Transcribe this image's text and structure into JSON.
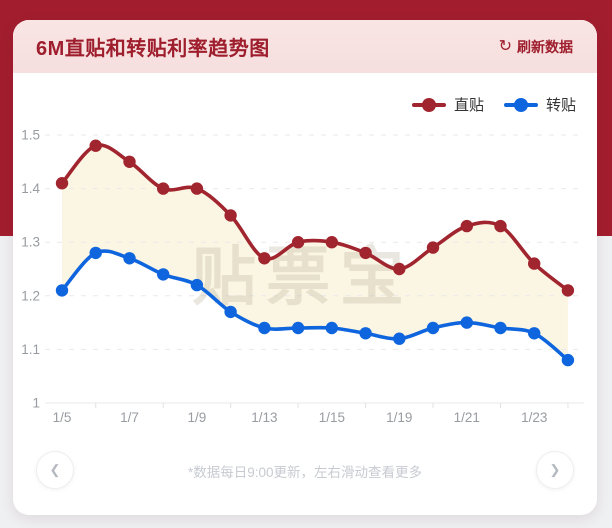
{
  "page": {
    "band_color": "#A21E2F",
    "bg_color": "#EFF0F2",
    "card_color": "#FFFFFF"
  },
  "header": {
    "title": "6M直贴和转贴利率趋势图",
    "refresh_icon": "↻",
    "refresh_label": "刷新数据",
    "text_color": "#9E1E2D",
    "bg_color": "#F8E3E2"
  },
  "legend": {
    "items": [
      {
        "label": "直贴",
        "color": "#A1252F"
      },
      {
        "label": "转贴",
        "color": "#0F65DE"
      }
    ]
  },
  "chart_data": {
    "type": "line",
    "title": "6M直贴和转贴利率趋势图",
    "x_tick_labels": [
      "1/5",
      "1/7",
      "1/9",
      "1/13",
      "1/15",
      "1/19",
      "1/21",
      "1/23"
    ],
    "points_per_label": 2,
    "n_points": 16,
    "series": [
      {
        "name": "直贴",
        "color": "#A1252F",
        "values": [
          1.41,
          1.48,
          1.45,
          1.4,
          1.4,
          1.35,
          1.27,
          1.3,
          1.3,
          1.28,
          1.25,
          1.29,
          1.33,
          1.33,
          1.26,
          1.21
        ]
      },
      {
        "name": "转贴",
        "color": "#0F65DE",
        "values": [
          1.21,
          1.28,
          1.27,
          1.24,
          1.22,
          1.17,
          1.14,
          1.14,
          1.14,
          1.13,
          1.12,
          1.14,
          1.15,
          1.14,
          1.13,
          1.08
        ]
      }
    ],
    "ylim": [
      1.0,
      1.5
    ],
    "y_ticks": [
      1.0,
      1.1,
      1.2,
      1.3,
      1.4,
      1.5
    ],
    "y_tick_labels": [
      "1",
      "1.1",
      "1.2",
      "1.3",
      "1.4",
      "1.5"
    ],
    "grid": "dashed-horizontal",
    "grid_color": "#E9E9E9",
    "axis_label_color": "#989CA1",
    "fill_between_color": "#FBF5E1",
    "watermark": "贴票宝",
    "watermark_color": "rgba(176,168,142,0.28)",
    "legend_position": "top-right"
  },
  "footer": {
    "note": "*数据每日9:00更新，左右滑动查看更多",
    "prev_icon": "❮",
    "next_icon": "❯"
  }
}
